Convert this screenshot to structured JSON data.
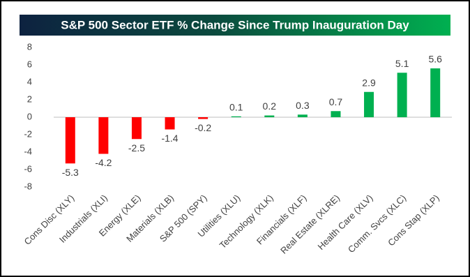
{
  "chart_data": {
    "type": "bar",
    "title": "S&P 500 Sector ETF % Change Since Trump Inauguration Day",
    "categories": [
      "Cons Disc (XLY)",
      "Industrials (XLI)",
      "Energy (XLE)",
      "Materials (XLB)",
      "S&P 500 (SPY)",
      "Utilities (XLU)",
      "Technology (XLK)",
      "Financials (XLF)",
      "Real Estate (XLRE)",
      "Health Care (XLV)",
      "Comm. Svcs (XLC)",
      "Cons Stap (XLP)"
    ],
    "values": [
      -5.3,
      -4.2,
      -2.5,
      -1.4,
      -0.2,
      0.1,
      0.2,
      0.3,
      0.7,
      2.9,
      5.1,
      5.6
    ],
    "colors": [
      "#ff0000",
      "#ff0000",
      "#ff0000",
      "#ff0000",
      "#ff0000",
      "#00b050",
      "#00b050",
      "#00b050",
      "#00b050",
      "#00b050",
      "#00b050",
      "#00b050"
    ],
    "ylim": [
      -8,
      8
    ],
    "yticks": [
      8,
      6,
      4,
      2,
      0,
      -2,
      -4,
      -6,
      -8
    ],
    "grid": false
  }
}
